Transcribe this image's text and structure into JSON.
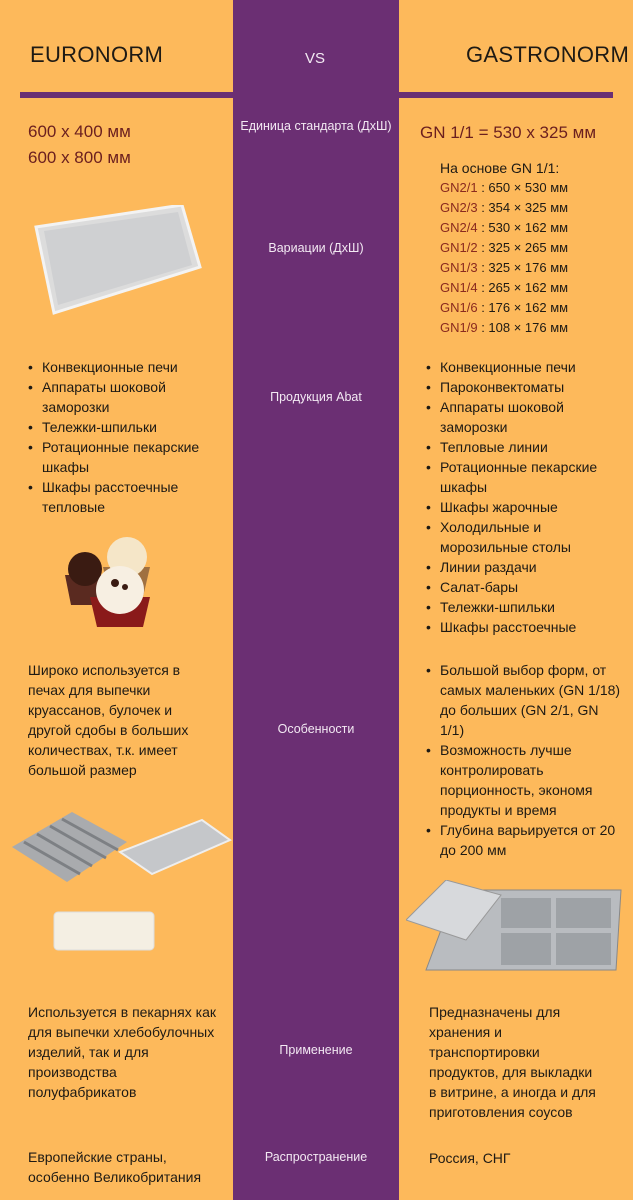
{
  "header": {
    "left": "EURONORM",
    "center": "VS",
    "right": "GASTRONORM"
  },
  "colors": {
    "background": "#FDB95B",
    "purple": "#6B2F73",
    "accent_text": "#6b1f1f"
  },
  "rows": {
    "unit": {
      "label": "Единица стандарта (ДхШ)",
      "left": [
        "600 х 400 мм",
        "600 х 800 мм"
      ],
      "right": "GN 1/1 = 530 х 325 мм"
    },
    "variations": {
      "label": "Вариации (ДхШ)",
      "right_intro": "На основе GN 1/1:",
      "right_items": [
        {
          "k": "GN2/1",
          "v": " : 650 × 530 мм"
        },
        {
          "k": "GN2/3",
          "v": " : 354 × 325 мм"
        },
        {
          "k": "GN2/4",
          "v": " : 530 × 162 мм"
        },
        {
          "k": "GN1/2",
          "v": " : 325 × 265 мм"
        },
        {
          "k": "GN1/3",
          "v": " : 325 × 176 мм"
        },
        {
          "k": "GN1/4",
          "v": " : 265 × 162 мм"
        },
        {
          "k": "GN1/6",
          "v": " : 176 × 162 мм"
        },
        {
          "k": "GN1/9",
          "v": " : 108 × 176 мм"
        }
      ]
    },
    "products": {
      "label": "Продукция Abat",
      "left": [
        "Конвекционные печи",
        "Аппараты шоковой заморозки",
        "Тележки-шпильки",
        "Ротационные пекарские шкафы",
        "Шкафы расстоечные тепловые"
      ],
      "right": [
        "Конвекционные печи",
        "Пароконвектоматы",
        "Аппараты шоковой заморозки",
        "Тепловые линии",
        "Ротационные пекарские шкафы",
        "Шкафы жарочные",
        "Холодильные и морозильные столы",
        "Линии раздачи",
        "Салат-бары",
        "Тележки-шпильки",
        "Шкафы расстоечные"
      ]
    },
    "features": {
      "label": "Особенности",
      "left": "Широко используется в печах для выпечки круассанов, булочек и другой сдобы в больших количествах, т.к. имеет большой размер",
      "right": [
        "Большой выбор форм, от самых маленьких (GN 1/18) до больших (GN 2/1, GN 1/1)",
        "Возможность лучше контролировать порционность, экономя продукты и время",
        "Глубина варьируется от 20 до 200 мм"
      ]
    },
    "usage": {
      "label": "Применение",
      "left": "Используется в пекарнях как для выпечки хлебобулочных изделий, так и для производства полуфабрикатов",
      "right": "Предназначены для хранения и транспортировки продуктов, для выкладки в витрине, а иногда и для приготовления соусов"
    },
    "spread": {
      "label": "Распространение",
      "left": "Европейские страны, особенно Великобритания",
      "right": "Россия, СНГ"
    }
  }
}
